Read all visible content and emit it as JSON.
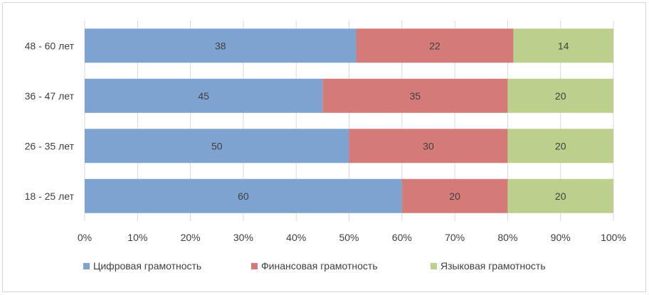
{
  "chart_data": {
    "type": "bar",
    "orientation": "horizontal",
    "stacking": "percent",
    "categories": [
      "48 - 60 лет",
      "36 - 47 лет",
      "26 - 35 лет",
      "18 - 25 лет"
    ],
    "series": [
      {
        "name": "Цифровая грамотность",
        "values": [
          38,
          45,
          50,
          60
        ],
        "color": "#7fa3d1"
      },
      {
        "name": "Финансовая грамотность",
        "values": [
          22,
          35,
          30,
          20
        ],
        "color": "#d47b79"
      },
      {
        "name": "Языковая грамотность",
        "values": [
          14,
          20,
          20,
          20
        ],
        "color": "#bccf8c"
      }
    ],
    "x_ticks": [
      "0%",
      "10%",
      "20%",
      "30%",
      "40%",
      "50%",
      "60%",
      "70%",
      "80%",
      "90%",
      "100%"
    ],
    "xlim": [
      0,
      100
    ],
    "grid": true,
    "legend_position": "bottom",
    "title": "",
    "xlabel": "",
    "ylabel": ""
  }
}
